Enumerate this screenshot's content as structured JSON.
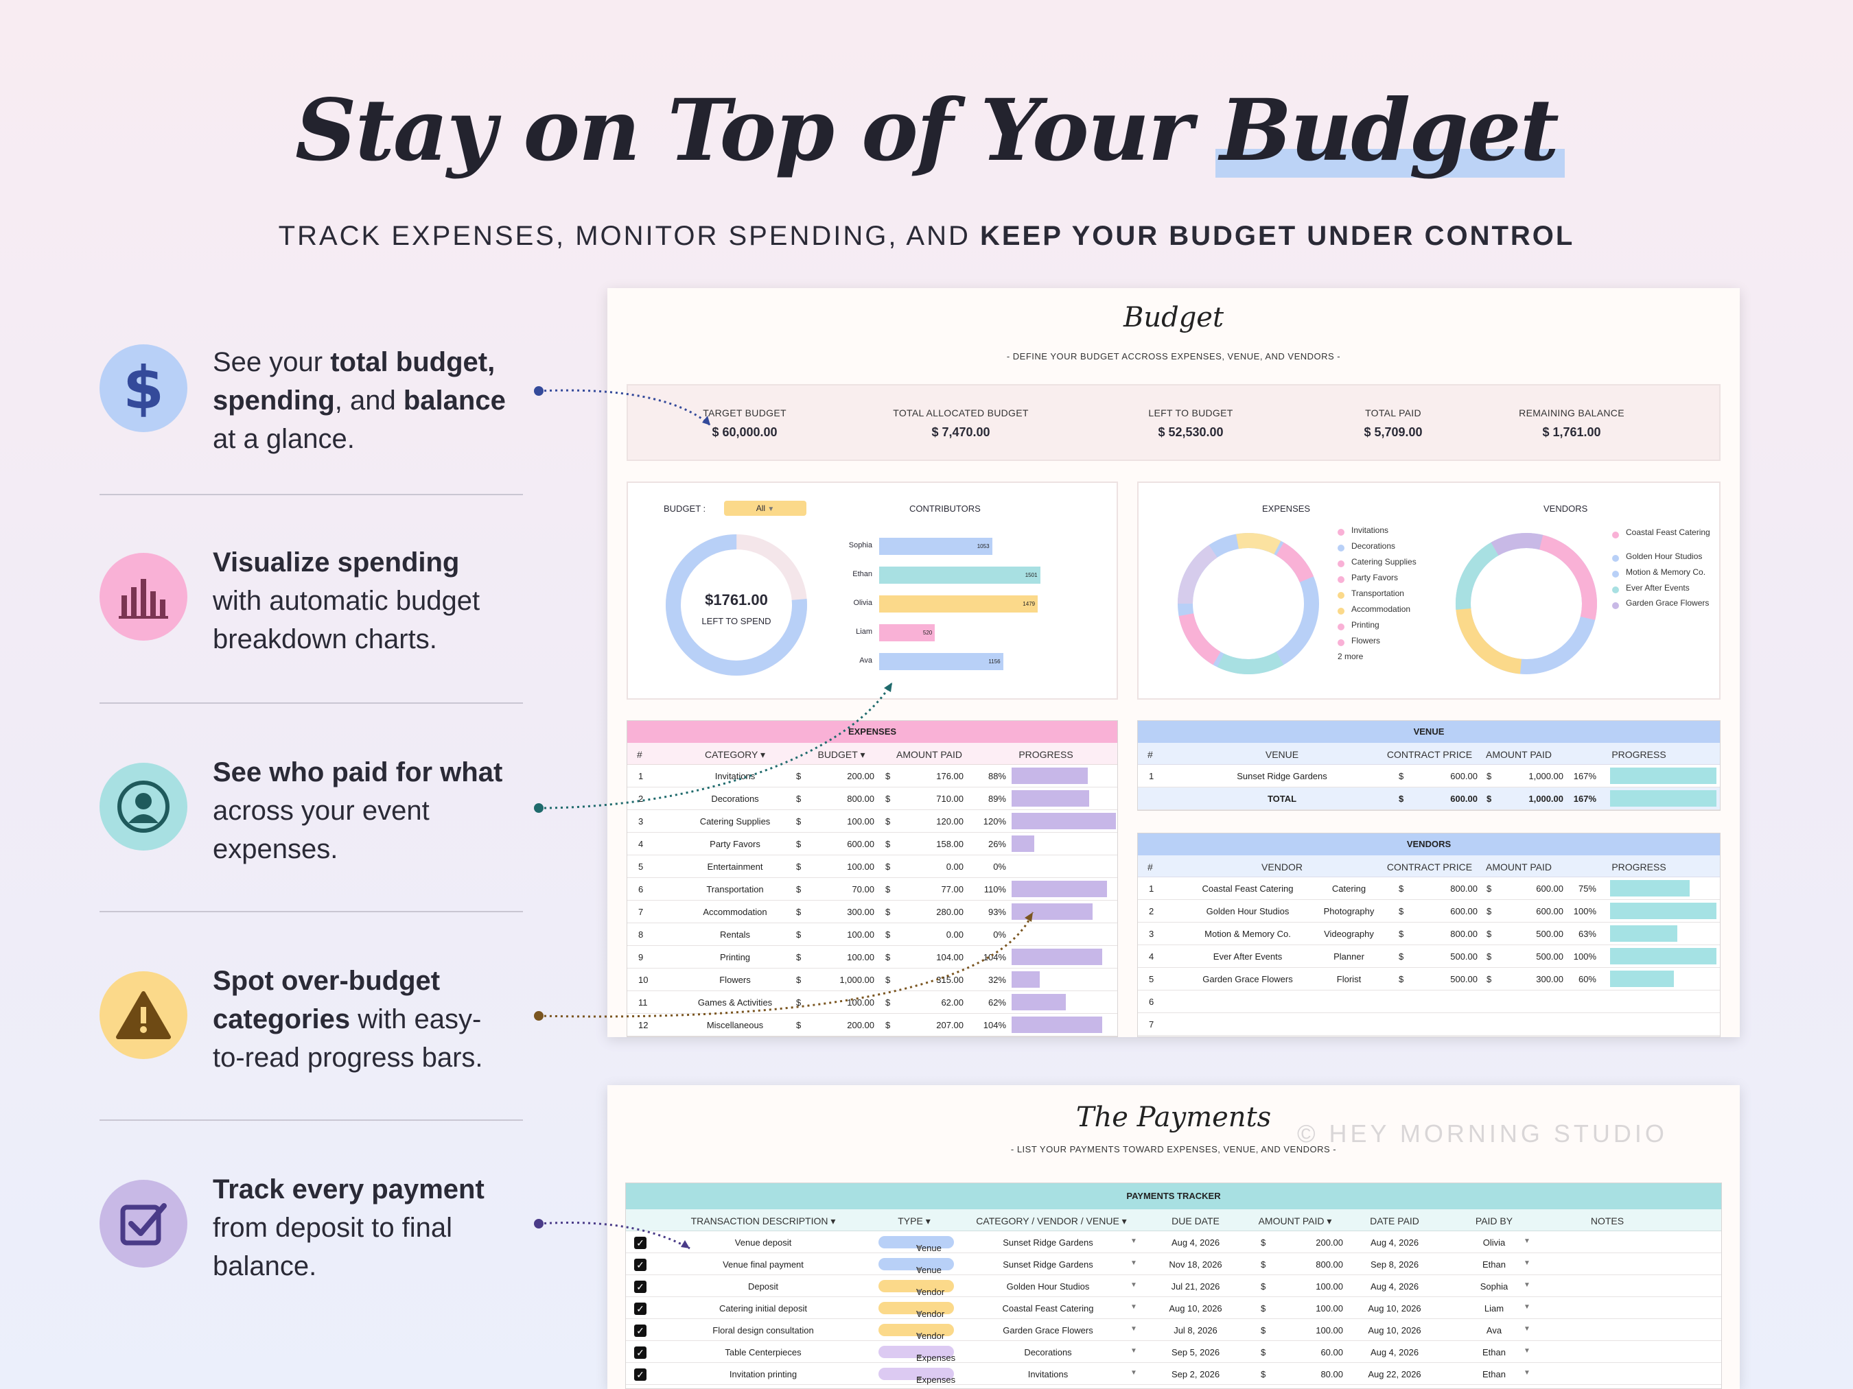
{
  "headline": {
    "part1": "Stay on Top of Your ",
    "part2": "Budget"
  },
  "subtitle": {
    "plain": "TRACK EXPENSES, MONITOR SPENDING, AND ",
    "bold": "KEEP YOUR BUDGET UNDER CONTROL"
  },
  "features": [
    {
      "icon": "dollar-icon",
      "l1a": "See your ",
      "l1b": "total budget,",
      "l2a": "spending",
      "l2b": ", and ",
      "l2c": "balance",
      "l3": "at a glance."
    },
    {
      "icon": "bar-chart-icon",
      "l1": "Visualize spending",
      "l2": "with automatic budget",
      "l3": "breakdown charts."
    },
    {
      "icon": "user-icon",
      "l1": "See who paid for what",
      "l2": "across your event",
      "l3": "expenses."
    },
    {
      "icon": "warning-icon",
      "l1": "Spot over-budget",
      "l2a": "categories",
      "l2b": " with easy-",
      "l3": "to-read progress bars."
    },
    {
      "icon": "checkbox-icon",
      "l1": "Track every payment",
      "l2": "from deposit to final",
      "l3": "balance."
    }
  ],
  "colors": {
    "blue": "#b8d0f7",
    "pink": "#f9b1d6",
    "teal": "#a8e0e2",
    "yellow": "#fbd98a",
    "purple": "#c8b9e6",
    "bar_purple": "#c7b7e8",
    "bar_teal": "#a5e2e4"
  },
  "budget": {
    "title": "Budget",
    "subtitle": "- DEFINE YOUR BUDGET ACCROSS EXPENSES, VENUE, AND VENDORS -",
    "kpis": [
      {
        "label": "TARGET BUDGET",
        "value": "$  60,000.00"
      },
      {
        "label": "TOTAL ALLOCATED BUDGET",
        "value": "$  7,470.00"
      },
      {
        "label": "LEFT TO BUDGET",
        "value": "$  52,530.00"
      },
      {
        "label": "TOTAL PAID",
        "value": "$  5,709.00"
      },
      {
        "label": "REMAINING BALANCE",
        "value": "$  1,761.00"
      }
    ],
    "filter_label": "BUDGET :",
    "filter_value": "All",
    "donut": {
      "amount": "$1761.00",
      "label": "LEFT TO SPEND",
      "fraction_left": 0.236
    },
    "contributors_title": "CONTRIBUTORS",
    "contributors": [
      {
        "name": "Sophia",
        "value": 1053,
        "color": "#b8d0f7"
      },
      {
        "name": "Ethan",
        "value": 1501,
        "color": "#a8e0e2"
      },
      {
        "name": "Olivia",
        "value": 1479,
        "color": "#fbd98a"
      },
      {
        "name": "Liam",
        "value": 520,
        "color": "#f9b1d6"
      },
      {
        "name": "Ava",
        "value": 1156,
        "color": "#b8d0f7"
      }
    ],
    "expenses_chart_title": "EXPENSES",
    "expenses_legend": [
      "Invitations",
      "Decorations",
      "Catering Supplies",
      "Party Favors",
      "Transportation",
      "Accommodation",
      "Printing",
      "Flowers",
      "2 more"
    ],
    "vendors_chart_title": "VENDORS",
    "vendors_legend": [
      "Coastal Feast Catering",
      "Golden Hour Studios",
      "Motion & Memory Co.",
      "Ever After Events",
      "Garden Grace Flowers"
    ],
    "expenses_table": {
      "title": "EXPENSES",
      "cols": [
        "#",
        "CATEGORY ▾",
        "BUDGET ▾",
        "AMOUNT PAID",
        "PROGRESS"
      ],
      "rows": [
        {
          "n": "1",
          "cat": "Invitations",
          "budget": "200.00",
          "paid": "176.00",
          "pct": "88%",
          "p": 0.88
        },
        {
          "n": "2",
          "cat": "Decorations",
          "budget": "800.00",
          "paid": "710.00",
          "pct": "89%",
          "p": 0.89
        },
        {
          "n": "3",
          "cat": "Catering Supplies",
          "budget": "100.00",
          "paid": "120.00",
          "pct": "120%",
          "p": 1.2
        },
        {
          "n": "4",
          "cat": "Party Favors",
          "budget": "600.00",
          "paid": "158.00",
          "pct": "26%",
          "p": 0.26
        },
        {
          "n": "5",
          "cat": "Entertainment",
          "budget": "100.00",
          "paid": "0.00",
          "pct": "0%",
          "p": 0
        },
        {
          "n": "6",
          "cat": "Transportation",
          "budget": "70.00",
          "paid": "77.00",
          "pct": "110%",
          "p": 1.1
        },
        {
          "n": "7",
          "cat": "Accommodation",
          "budget": "300.00",
          "paid": "280.00",
          "pct": "93%",
          "p": 0.93
        },
        {
          "n": "8",
          "cat": "Rentals",
          "budget": "100.00",
          "paid": "0.00",
          "pct": "0%",
          "p": 0
        },
        {
          "n": "9",
          "cat": "Printing",
          "budget": "100.00",
          "paid": "104.00",
          "pct": "104%",
          "p": 1.04
        },
        {
          "n": "10",
          "cat": "Flowers",
          "budget": "1,000.00",
          "paid": "315.00",
          "pct": "32%",
          "p": 0.32
        },
        {
          "n": "11",
          "cat": "Games & Activities",
          "budget": "100.00",
          "paid": "62.00",
          "pct": "62%",
          "p": 0.62
        },
        {
          "n": "12",
          "cat": "Miscellaneous",
          "budget": "200.00",
          "paid": "207.00",
          "pct": "104%",
          "p": 1.04
        }
      ]
    },
    "venue_table": {
      "title": "VENUE",
      "cols": [
        "#",
        "VENUE",
        "CONTRACT PRICE",
        "AMOUNT PAID",
        "PROGRESS"
      ],
      "rows": [
        {
          "n": "1",
          "name": "Sunset Ridge Gardens",
          "price": "600.00",
          "paid": "1,000.00",
          "pct": "167%",
          "p": 1.67
        }
      ],
      "total": {
        "label": "TOTAL",
        "price": "600.00",
        "paid": "1,000.00",
        "pct": "167%",
        "p": 1.67
      }
    },
    "vendors_table": {
      "title": "VENDORS",
      "cols": [
        "#",
        "VENDOR",
        "CONTRACT PRICE",
        "AMOUNT PAID",
        "PROGRESS"
      ],
      "rows": [
        {
          "n": "1",
          "name": "Coastal Feast Catering",
          "type": "Catering",
          "price": "800.00",
          "paid": "600.00",
          "pct": "75%",
          "p": 0.75
        },
        {
          "n": "2",
          "name": "Golden Hour Studios",
          "type": "Photography",
          "price": "600.00",
          "paid": "600.00",
          "pct": "100%",
          "p": 1
        },
        {
          "n": "3",
          "name": "Motion & Memory Co.",
          "type": "Videography",
          "price": "800.00",
          "paid": "500.00",
          "pct": "63%",
          "p": 0.63
        },
        {
          "n": "4",
          "name": "Ever After Events",
          "type": "Planner",
          "price": "500.00",
          "paid": "500.00",
          "pct": "100%",
          "p": 1
        },
        {
          "n": "5",
          "name": "Garden Grace Flowers",
          "type": "Florist",
          "price": "500.00",
          "paid": "300.00",
          "pct": "60%",
          "p": 0.6
        },
        {
          "n": "6",
          "name": "",
          "type": "",
          "price": "",
          "paid": "",
          "pct": "",
          "p": 0
        },
        {
          "n": "7",
          "name": "",
          "type": "",
          "price": "",
          "paid": "",
          "pct": "",
          "p": 0
        }
      ]
    }
  },
  "payments": {
    "title": "The Payments",
    "watermark": "© HEY MORNING STUDIO",
    "subtitle": "- LIST YOUR PAYMENTS TOWARD EXPENSES, VENUE, AND VENDORS -",
    "table_title": "PAYMENTS TRACKER",
    "cols": [
      "TRANSACTION DESCRIPTION ▾",
      "TYPE ▾",
      "CATEGORY / VENDOR / VENUE ▾",
      "DUE DATE",
      "AMOUNT PAID ▾",
      "DATE PAID",
      "PAID BY",
      "NOTES"
    ],
    "rows": [
      {
        "desc": "Venue deposit",
        "type": "Venue",
        "cat": "Sunset Ridge Gardens",
        "due": "Aug 4, 2026",
        "amt": "200.00",
        "paid": "Aug 4, 2026",
        "by": "Olivia"
      },
      {
        "desc": "Venue final payment",
        "type": "Venue",
        "cat": "Sunset Ridge Gardens",
        "due": "Nov 18, 2026",
        "amt": "800.00",
        "paid": "Sep 8, 2026",
        "by": "Ethan"
      },
      {
        "desc": "Deposit",
        "type": "Vendor",
        "cat": "Golden Hour Studios",
        "due": "Jul 21, 2026",
        "amt": "100.00",
        "paid": "Aug 4, 2026",
        "by": "Sophia"
      },
      {
        "desc": "Catering initial deposit",
        "type": "Vendor",
        "cat": "Coastal Feast Catering",
        "due": "Aug 10, 2026",
        "amt": "100.00",
        "paid": "Aug 10, 2026",
        "by": "Liam"
      },
      {
        "desc": "Floral design consultation",
        "type": "Vendor",
        "cat": "Garden Grace Flowers",
        "due": "Jul 8, 2026",
        "amt": "100.00",
        "paid": "Aug 10, 2026",
        "by": "Ava"
      },
      {
        "desc": "Table Centerpieces",
        "type": "Expenses",
        "cat": "Decorations",
        "due": "Sep 5, 2026",
        "amt": "60.00",
        "paid": "Aug 4, 2026",
        "by": "Ethan"
      },
      {
        "desc": "Invitation printing",
        "type": "Expenses",
        "cat": "Invitations",
        "due": "Sep 2, 2026",
        "amt": "80.00",
        "paid": "Aug 22, 2026",
        "by": "Ethan"
      }
    ]
  }
}
